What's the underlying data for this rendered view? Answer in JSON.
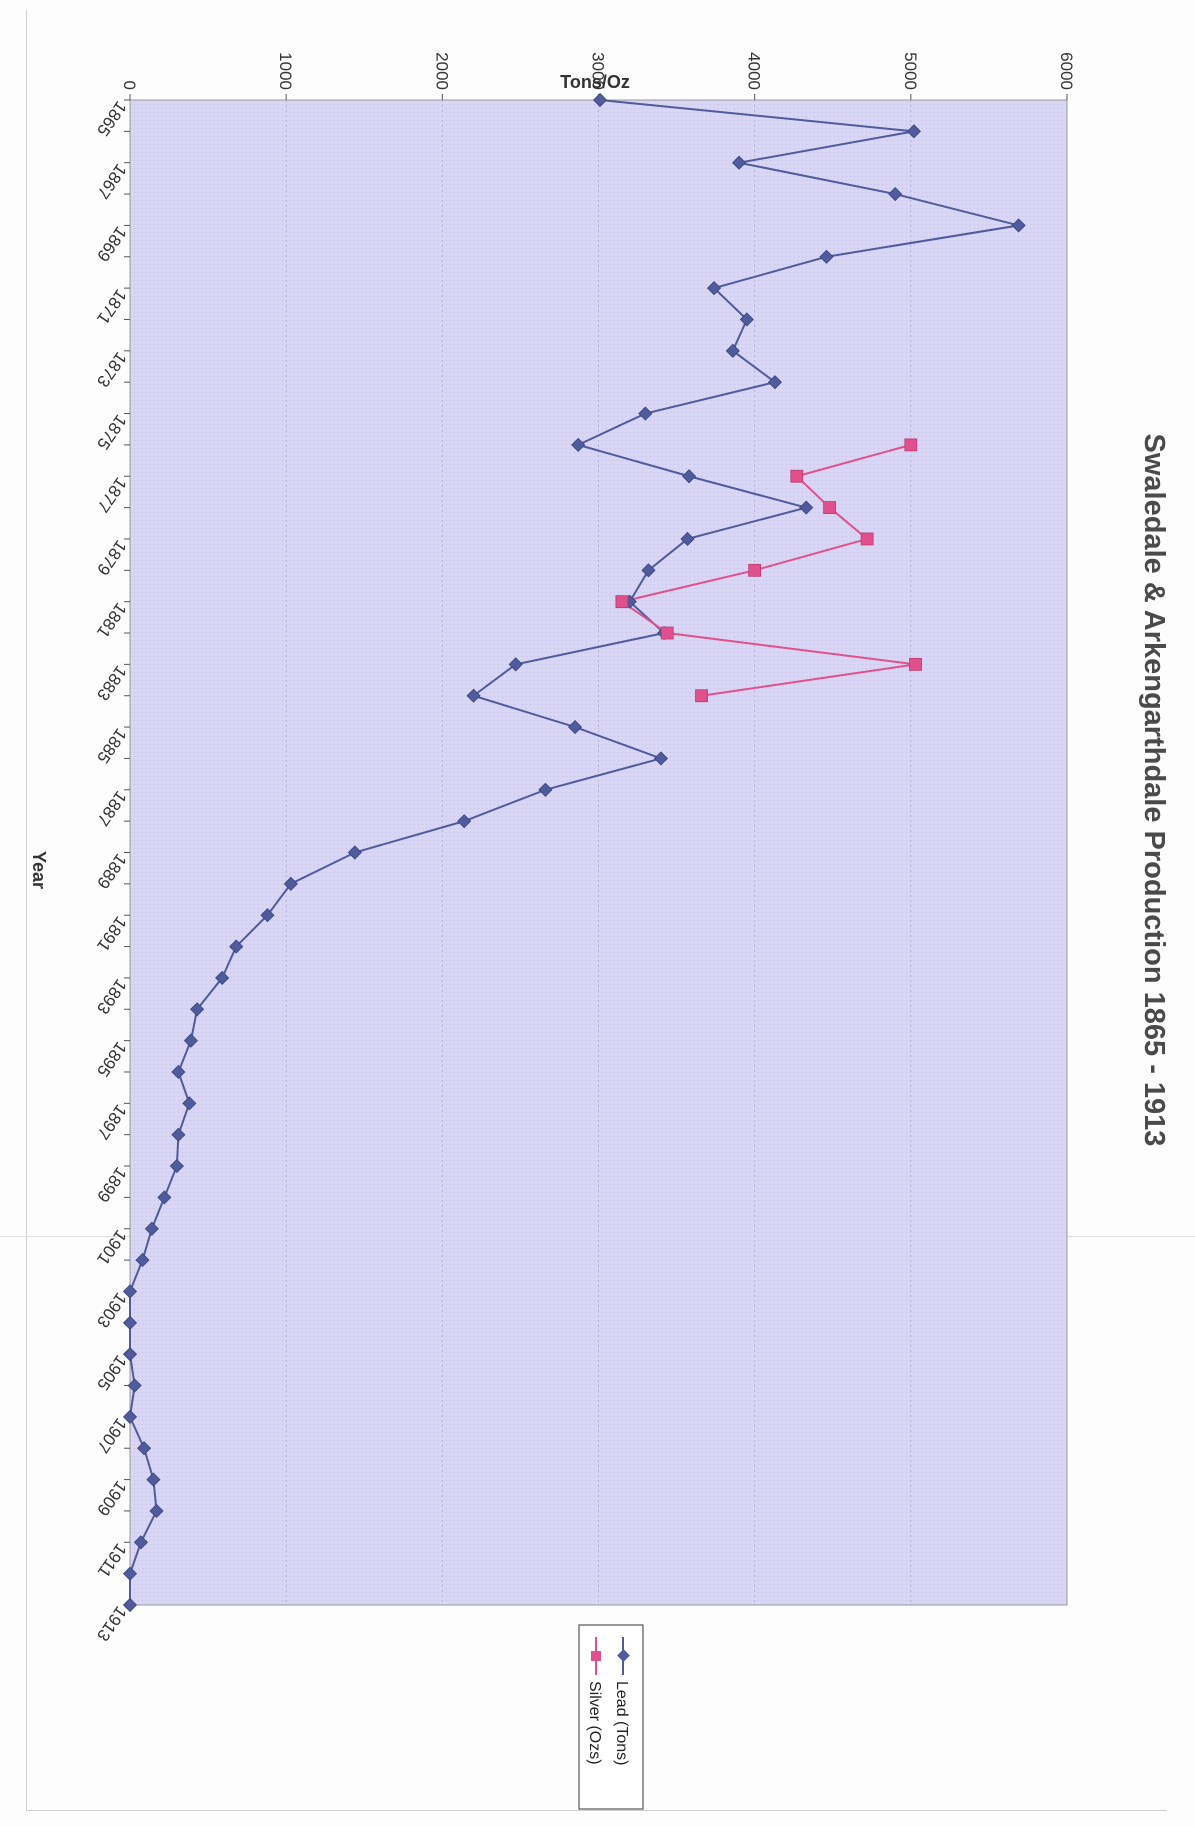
{
  "chart_data": {
    "type": "line",
    "title": "Swaledale & Arkengarthdale Production 1865 - 1913",
    "xlabel": "Year",
    "ylabel": "Tons/Oz",
    "ylim": [
      0,
      6000
    ],
    "yticks": [
      "0",
      "1000",
      "2000",
      "3000",
      "4000",
      "5000",
      "6000"
    ],
    "xticks": [
      "1865",
      "1867",
      "1869",
      "1871",
      "1873",
      "1875",
      "1877",
      "1879",
      "1881",
      "1883",
      "1885",
      "1887",
      "1889",
      "1891",
      "1893",
      "1895",
      "1897",
      "1899",
      "1901",
      "1903",
      "1905",
      "1907",
      "1909",
      "1911",
      "1913"
    ],
    "x": [
      1865,
      1866,
      1867,
      1868,
      1869,
      1870,
      1871,
      1872,
      1873,
      1874,
      1875,
      1876,
      1877,
      1878,
      1879,
      1880,
      1881,
      1882,
      1883,
      1884,
      1885,
      1886,
      1887,
      1888,
      1889,
      1890,
      1891,
      1892,
      1893,
      1894,
      1895,
      1896,
      1897,
      1898,
      1899,
      1900,
      1901,
      1902,
      1903,
      1904,
      1905,
      1906,
      1907,
      1908,
      1909,
      1910,
      1911,
      1912,
      1913
    ],
    "series": [
      {
        "name": "Lead (Tons)",
        "color": "#4f5b9c",
        "marker": "diamond",
        "values": [
          3010,
          5020,
          3900,
          4900,
          5690,
          4460,
          3740,
          3950,
          3860,
          4130,
          3300,
          2870,
          3580,
          4330,
          3570,
          3320,
          3200,
          3420,
          2470,
          2200,
          2850,
          3400,
          2660,
          2140,
          1440,
          1030,
          880,
          680,
          590,
          430,
          390,
          310,
          380,
          310,
          300,
          220,
          140,
          80,
          0,
          0,
          0,
          30,
          0,
          90,
          150,
          170,
          70,
          0,
          0
        ]
      },
      {
        "name": "Silver (Ozs)",
        "color": "#e0508c",
        "marker": "square",
        "values": [
          null,
          null,
          null,
          null,
          null,
          null,
          null,
          null,
          null,
          null,
          null,
          5000,
          4270,
          4480,
          4720,
          4000,
          3150,
          3440,
          5030,
          3660,
          null,
          null,
          null,
          null,
          null,
          null,
          null,
          null,
          null,
          null,
          null,
          null,
          null,
          null,
          null,
          null,
          null,
          null,
          null,
          null,
          null,
          null,
          null,
          null,
          null,
          null,
          null,
          null,
          null
        ]
      }
    ],
    "grid": "dotted horizontal",
    "legend": "bottom-right",
    "plot_background": "#d8d5f2"
  }
}
